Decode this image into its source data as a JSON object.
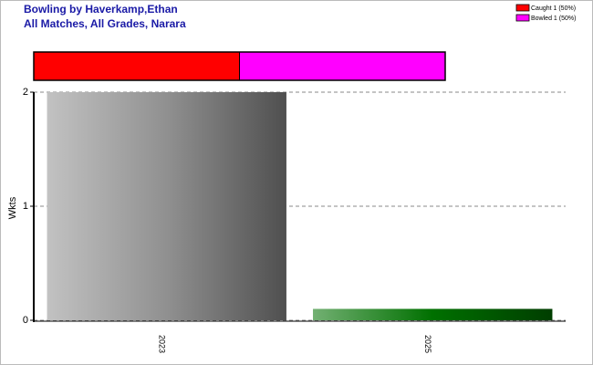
{
  "chart_data": [
    {
      "type": "proportion",
      "title": "Bowling by Haverkamp,Ethan",
      "subtitle": "All Matches, All Grades, Narara",
      "series": [
        {
          "name": "Caught 1 (50%)",
          "color": "#ff0000",
          "values": [
            1
          ]
        },
        {
          "name": "Bowled 1 (50%)",
          "color": "#ff00ff",
          "values": [
            1
          ]
        }
      ]
    },
    {
      "type": "bar",
      "y_label": "Wkts",
      "categories": [
        "2023",
        "2025"
      ],
      "values": [
        2,
        0.1
      ],
      "colors": [
        "#909090",
        "#007000"
      ],
      "ylim": [
        0,
        2
      ],
      "yticks": [
        0,
        1,
        2
      ],
      "grid": true
    }
  ]
}
